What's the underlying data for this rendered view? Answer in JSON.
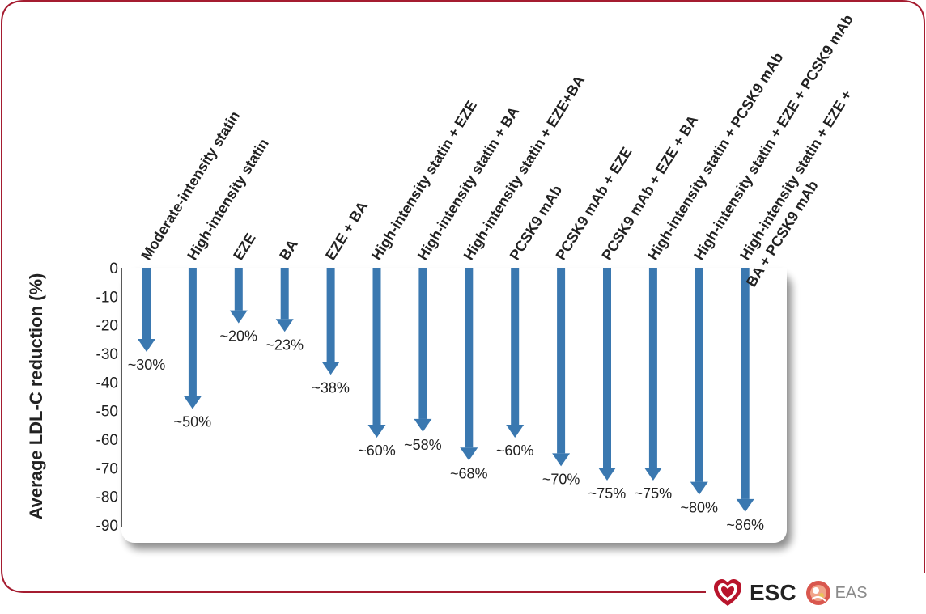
{
  "chart_data": {
    "type": "bar",
    "ylabel": "Average LDL-C reduction (%)",
    "ylim": [
      -90,
      0
    ],
    "yticks": [
      "0",
      "-10",
      "-20",
      "-30",
      "-40",
      "-50",
      "-60",
      "-70",
      "-80",
      "-90"
    ],
    "categories": [
      "Moderate-intensity statin",
      "High-intensity statin",
      "EZE",
      "BA",
      "EZE + BA",
      "High-intensity statin + EZE",
      "High-intensity statin + BA",
      "High-intensity statin + EZE+BA",
      "PCSK9 mAb",
      "PCSK9 mAb + EZE",
      "PCSK9 mAb + EZE + BA",
      "High-intensity statin + PCSK9 mAb",
      "High-intensity statin + EZE + PCSK9 mAb",
      "High-intensity statin + EZE + BA + PCSK9 mAb"
    ],
    "category_lines": [
      [
        "Moderate-intensity statin"
      ],
      [
        "High-intensity statin"
      ],
      [
        "EZE"
      ],
      [
        "BA"
      ],
      [
        "EZE + BA"
      ],
      [
        "High-intensity statin + EZE"
      ],
      [
        "High-intensity statin + BA"
      ],
      [
        "High-intensity statin + EZE+BA"
      ],
      [
        "PCSK9 mAb"
      ],
      [
        "PCSK9 mAb + EZE"
      ],
      [
        "PCSK9 mAb + EZE + BA"
      ],
      [
        "High-intensity statin + PCSK9 mAb"
      ],
      [
        "High-intensity statin + EZE + PCSK9 mAb"
      ],
      [
        "High-intensity statin + EZE +",
        "BA + PCSK9 mAb"
      ]
    ],
    "values": [
      -30,
      -50,
      -20,
      -23,
      -38,
      -60,
      -58,
      -68,
      -60,
      -70,
      -75,
      -75,
      -80,
      -86
    ],
    "labels": [
      "~30%",
      "~50%",
      "~20%",
      "~23%",
      "~38%",
      "~60%",
      "~58%",
      "~68%",
      "~60%",
      "~70%",
      "~75%",
      "~75%",
      "~80%",
      "~86%"
    ],
    "arrow_color": "#3a78b0"
  },
  "logos": {
    "esc": "ESC",
    "eas": "EAS"
  }
}
